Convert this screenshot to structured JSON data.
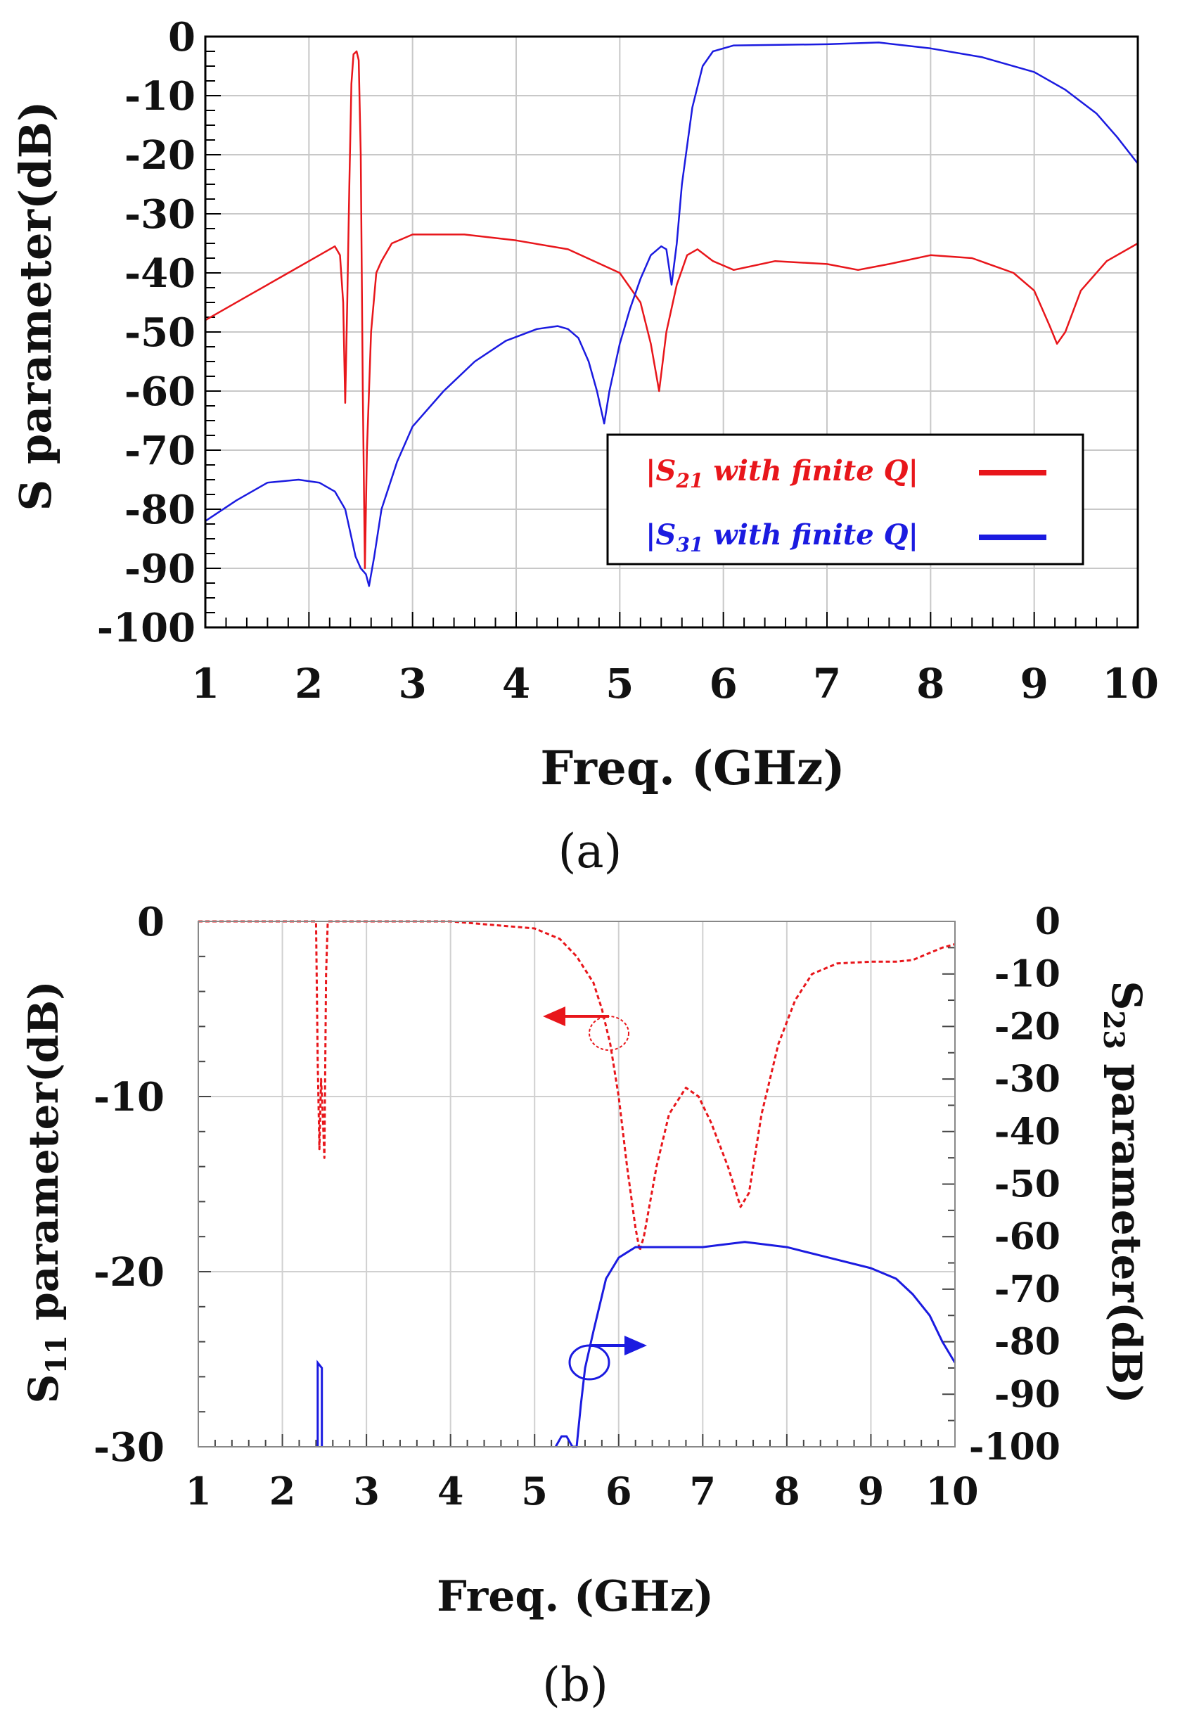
{
  "chart_data": [
    {
      "panel": "(a)",
      "type": "line",
      "xlabel": "Freq. (GHz)",
      "ylabel": "S parameter(dB)",
      "xlim": [
        1,
        10
      ],
      "ylim": [
        -100,
        0
      ],
      "xticks": [
        1,
        2,
        3,
        4,
        5,
        6,
        7,
        8,
        9,
        10
      ],
      "yticks": [
        0,
        -10,
        -20,
        -30,
        -40,
        -50,
        -60,
        -70,
        -80,
        -90,
        -100
      ],
      "grid": true,
      "legend_position": "center-right",
      "series": [
        {
          "name": "|S21 with finite Q|",
          "legend": {
            "prefix": "|S",
            "sub": "21",
            "text": " with finite Q|"
          },
          "color": "#e8161b",
          "style": "solid",
          "points": [
            [
              1.0,
              -48
            ],
            [
              1.4,
              -44
            ],
            [
              1.8,
              -40
            ],
            [
              2.1,
              -37
            ],
            [
              2.25,
              -35.5
            ],
            [
              2.3,
              -37
            ],
            [
              2.33,
              -45
            ],
            [
              2.35,
              -62
            ],
            [
              2.37,
              -45
            ],
            [
              2.39,
              -25
            ],
            [
              2.41,
              -8
            ],
            [
              2.43,
              -3
            ],
            [
              2.46,
              -2.5
            ],
            [
              2.48,
              -4
            ],
            [
              2.5,
              -20
            ],
            [
              2.52,
              -60
            ],
            [
              2.54,
              -90
            ],
            [
              2.56,
              -70
            ],
            [
              2.6,
              -50
            ],
            [
              2.65,
              -40
            ],
            [
              2.7,
              -38
            ],
            [
              2.8,
              -35
            ],
            [
              3.0,
              -33.5
            ],
            [
              3.5,
              -33.5
            ],
            [
              4.0,
              -34.5
            ],
            [
              4.5,
              -36
            ],
            [
              5.0,
              -40
            ],
            [
              5.2,
              -45
            ],
            [
              5.3,
              -52
            ],
            [
              5.38,
              -60
            ],
            [
              5.45,
              -50
            ],
            [
              5.55,
              -42
            ],
            [
              5.65,
              -37
            ],
            [
              5.75,
              -36
            ],
            [
              5.9,
              -38
            ],
            [
              6.1,
              -39.5
            ],
            [
              6.5,
              -38
            ],
            [
              7.0,
              -38.5
            ],
            [
              7.3,
              -39.5
            ],
            [
              7.6,
              -38.5
            ],
            [
              8.0,
              -37
            ],
            [
              8.4,
              -37.5
            ],
            [
              8.8,
              -40
            ],
            [
              9.0,
              -43
            ],
            [
              9.15,
              -49
            ],
            [
              9.22,
              -52
            ],
            [
              9.3,
              -50
            ],
            [
              9.45,
              -43
            ],
            [
              9.7,
              -38
            ],
            [
              10.0,
              -35
            ]
          ]
        },
        {
          "name": "|S31 with finite Q|",
          "legend": {
            "prefix": "|S",
            "sub": "31",
            "text": " with finite Q|"
          },
          "color": "#1b1be0",
          "style": "solid",
          "points": [
            [
              1.0,
              -82
            ],
            [
              1.3,
              -78.5
            ],
            [
              1.6,
              -75.5
            ],
            [
              1.9,
              -75
            ],
            [
              2.1,
              -75.5
            ],
            [
              2.25,
              -77
            ],
            [
              2.35,
              -80
            ],
            [
              2.4,
              -84
            ],
            [
              2.45,
              -88
            ],
            [
              2.5,
              -90
            ],
            [
              2.55,
              -91
            ],
            [
              2.58,
              -93
            ],
            [
              2.63,
              -88
            ],
            [
              2.7,
              -80
            ],
            [
              2.85,
              -72
            ],
            [
              3.0,
              -66
            ],
            [
              3.3,
              -60
            ],
            [
              3.6,
              -55
            ],
            [
              3.9,
              -51.5
            ],
            [
              4.2,
              -49.5
            ],
            [
              4.4,
              -49
            ],
            [
              4.5,
              -49.5
            ],
            [
              4.6,
              -51
            ],
            [
              4.7,
              -55
            ],
            [
              4.78,
              -60
            ],
            [
              4.85,
              -65.5
            ],
            [
              4.9,
              -60
            ],
            [
              5.0,
              -52
            ],
            [
              5.1,
              -46
            ],
            [
              5.2,
              -41
            ],
            [
              5.3,
              -37
            ],
            [
              5.4,
              -35.5
            ],
            [
              5.45,
              -36
            ],
            [
              5.5,
              -42
            ],
            [
              5.55,
              -35
            ],
            [
              5.6,
              -25
            ],
            [
              5.7,
              -12
            ],
            [
              5.8,
              -5
            ],
            [
              5.9,
              -2.5
            ],
            [
              6.1,
              -1.5
            ],
            [
              7.0,
              -1.3
            ],
            [
              7.5,
              -1
            ],
            [
              8.0,
              -2
            ],
            [
              8.5,
              -3.5
            ],
            [
              9.0,
              -6
            ],
            [
              9.3,
              -9
            ],
            [
              9.6,
              -13
            ],
            [
              9.8,
              -17
            ],
            [
              10.0,
              -21.5
            ]
          ]
        }
      ]
    },
    {
      "panel": "(b)",
      "type": "line",
      "xlabel": "Freq. (GHz)",
      "ylabel_left": {
        "prefix": "S",
        "sub": "11",
        "text": " parameter(dB)"
      },
      "ylabel_right": {
        "prefix": "S",
        "sub": "23",
        "text": " parameter(dB)"
      },
      "xlim": [
        1,
        10
      ],
      "ylim_left": [
        -30,
        0
      ],
      "ylim_right": [
        -100,
        0
      ],
      "xticks": [
        1,
        2,
        3,
        4,
        5,
        6,
        7,
        8,
        9,
        10
      ],
      "yticks_left": [
        0,
        -10,
        -20,
        -30
      ],
      "yticks_right": [
        0,
        -10,
        -20,
        -30,
        -40,
        -50,
        -60,
        -70,
        -80,
        -90,
        -100
      ],
      "grid": true,
      "series": [
        {
          "name": "S11",
          "axis": "left",
          "color": "#e8161b",
          "style": "dashed",
          "points": [
            [
              1.0,
              0
            ],
            [
              2.4,
              0
            ],
            [
              2.42,
              -8
            ],
            [
              2.44,
              -13
            ],
            [
              2.46,
              -9
            ],
            [
              2.48,
              -11
            ],
            [
              2.5,
              -13.5
            ],
            [
              2.52,
              -3
            ],
            [
              2.54,
              0
            ],
            [
              3.0,
              0
            ],
            [
              4.0,
              0
            ],
            [
              4.5,
              -0.2
            ],
            [
              5.0,
              -0.4
            ],
            [
              5.3,
              -1
            ],
            [
              5.5,
              -2
            ],
            [
              5.7,
              -3.5
            ],
            [
              5.8,
              -5
            ],
            [
              5.9,
              -7
            ],
            [
              6.0,
              -10
            ],
            [
              6.1,
              -14
            ],
            [
              6.2,
              -17.5
            ],
            [
              6.25,
              -18.8
            ],
            [
              6.3,
              -18
            ],
            [
              6.45,
              -14
            ],
            [
              6.6,
              -11
            ],
            [
              6.8,
              -9.5
            ],
            [
              6.95,
              -10
            ],
            [
              7.1,
              -11.5
            ],
            [
              7.3,
              -14
            ],
            [
              7.45,
              -16.3
            ],
            [
              7.55,
              -15.5
            ],
            [
              7.7,
              -11
            ],
            [
              7.9,
              -7
            ],
            [
              8.1,
              -4.5
            ],
            [
              8.3,
              -3
            ],
            [
              8.6,
              -2.4
            ],
            [
              9.0,
              -2.3
            ],
            [
              9.3,
              -2.3
            ],
            [
              9.5,
              -2.2
            ],
            [
              9.7,
              -1.8
            ],
            [
              9.85,
              -1.5
            ],
            [
              10.0,
              -1.3
            ]
          ]
        },
        {
          "name": "S23",
          "axis": "right",
          "color": "#1b1be0",
          "style": "solid",
          "points": [
            [
              5.25,
              -100
            ],
            [
              5.32,
              -98
            ],
            [
              5.38,
              -98
            ],
            [
              5.45,
              -100
            ],
            [
              5.5,
              -100
            ],
            [
              5.55,
              -92
            ],
            [
              5.6,
              -85
            ],
            [
              5.7,
              -78
            ],
            [
              5.85,
              -68
            ],
            [
              6.0,
              -64
            ],
            [
              6.2,
              -62
            ],
            [
              6.5,
              -62
            ],
            [
              7.0,
              -62
            ],
            [
              7.5,
              -61
            ],
            [
              8.0,
              -62
            ],
            [
              8.5,
              -64
            ],
            [
              9.0,
              -66
            ],
            [
              9.3,
              -68
            ],
            [
              9.5,
              -71
            ],
            [
              9.7,
              -75
            ],
            [
              9.85,
              -80
            ],
            [
              10.0,
              -84
            ]
          ],
          "extra_segment": [
            [
              2.42,
              -100
            ],
            [
              2.42,
              -84
            ],
            [
              2.47,
              -85
            ],
            [
              2.47,
              -100
            ]
          ]
        }
      ],
      "annotations": [
        {
          "type": "circle-arrow",
          "color": "#e8161b",
          "direction": "left",
          "meaning": "S11 curve uses left axis"
        },
        {
          "type": "circle-arrow",
          "color": "#1b1be0",
          "direction": "right",
          "meaning": "S23 curve uses right axis"
        }
      ]
    }
  ],
  "captions": [
    "(a)",
    "(b)"
  ]
}
